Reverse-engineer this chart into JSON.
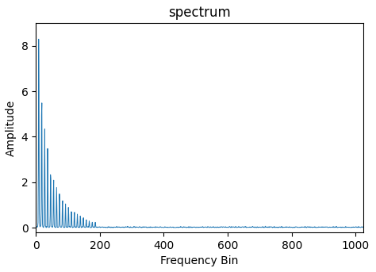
{
  "title": "spectrum",
  "xlabel": "Frequency Bin",
  "ylabel": "Amplitude",
  "xlim": [
    0,
    1024
  ],
  "ylim": [
    -0.2,
    9.0
  ],
  "line_color": "#1f77b4",
  "line_width": 0.7,
  "n_bins": 1025,
  "figsize": [
    4.74,
    3.43
  ],
  "dpi": 100,
  "yticks": [
    0,
    2,
    4,
    6,
    8
  ],
  "xticks": [
    0,
    200,
    400,
    600,
    800,
    1000
  ]
}
